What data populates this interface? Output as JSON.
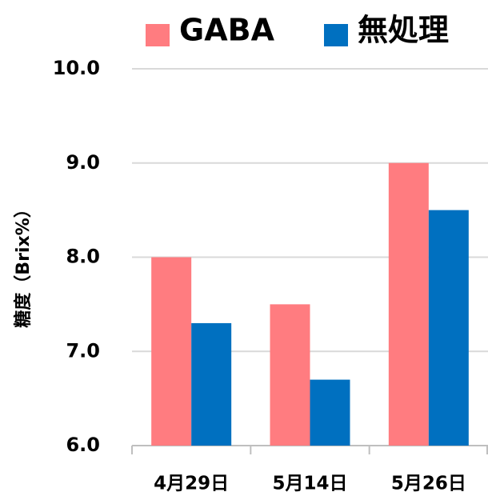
{
  "chart_data": {
    "type": "bar",
    "y_label": "糖度（Brix%）",
    "categories": [
      "4月29日",
      "5月14日",
      "5月26日"
    ],
    "series": [
      {
        "name": "GABA",
        "color": "#ff7c80",
        "values": [
          8.0,
          7.5,
          9.0
        ]
      },
      {
        "name": "無処理",
        "color": "#0070c0",
        "values": [
          7.3,
          6.7,
          8.5
        ]
      }
    ],
    "ylim": [
      6,
      10
    ],
    "yticks": [
      {
        "value": 6,
        "label": "6.0"
      },
      {
        "value": 7,
        "label": "7.0"
      },
      {
        "value": 8,
        "label": "8.0"
      },
      {
        "value": 9,
        "label": "9.0"
      },
      {
        "value": 10,
        "label": "10.0"
      }
    ],
    "grid": true,
    "legend": "top"
  }
}
